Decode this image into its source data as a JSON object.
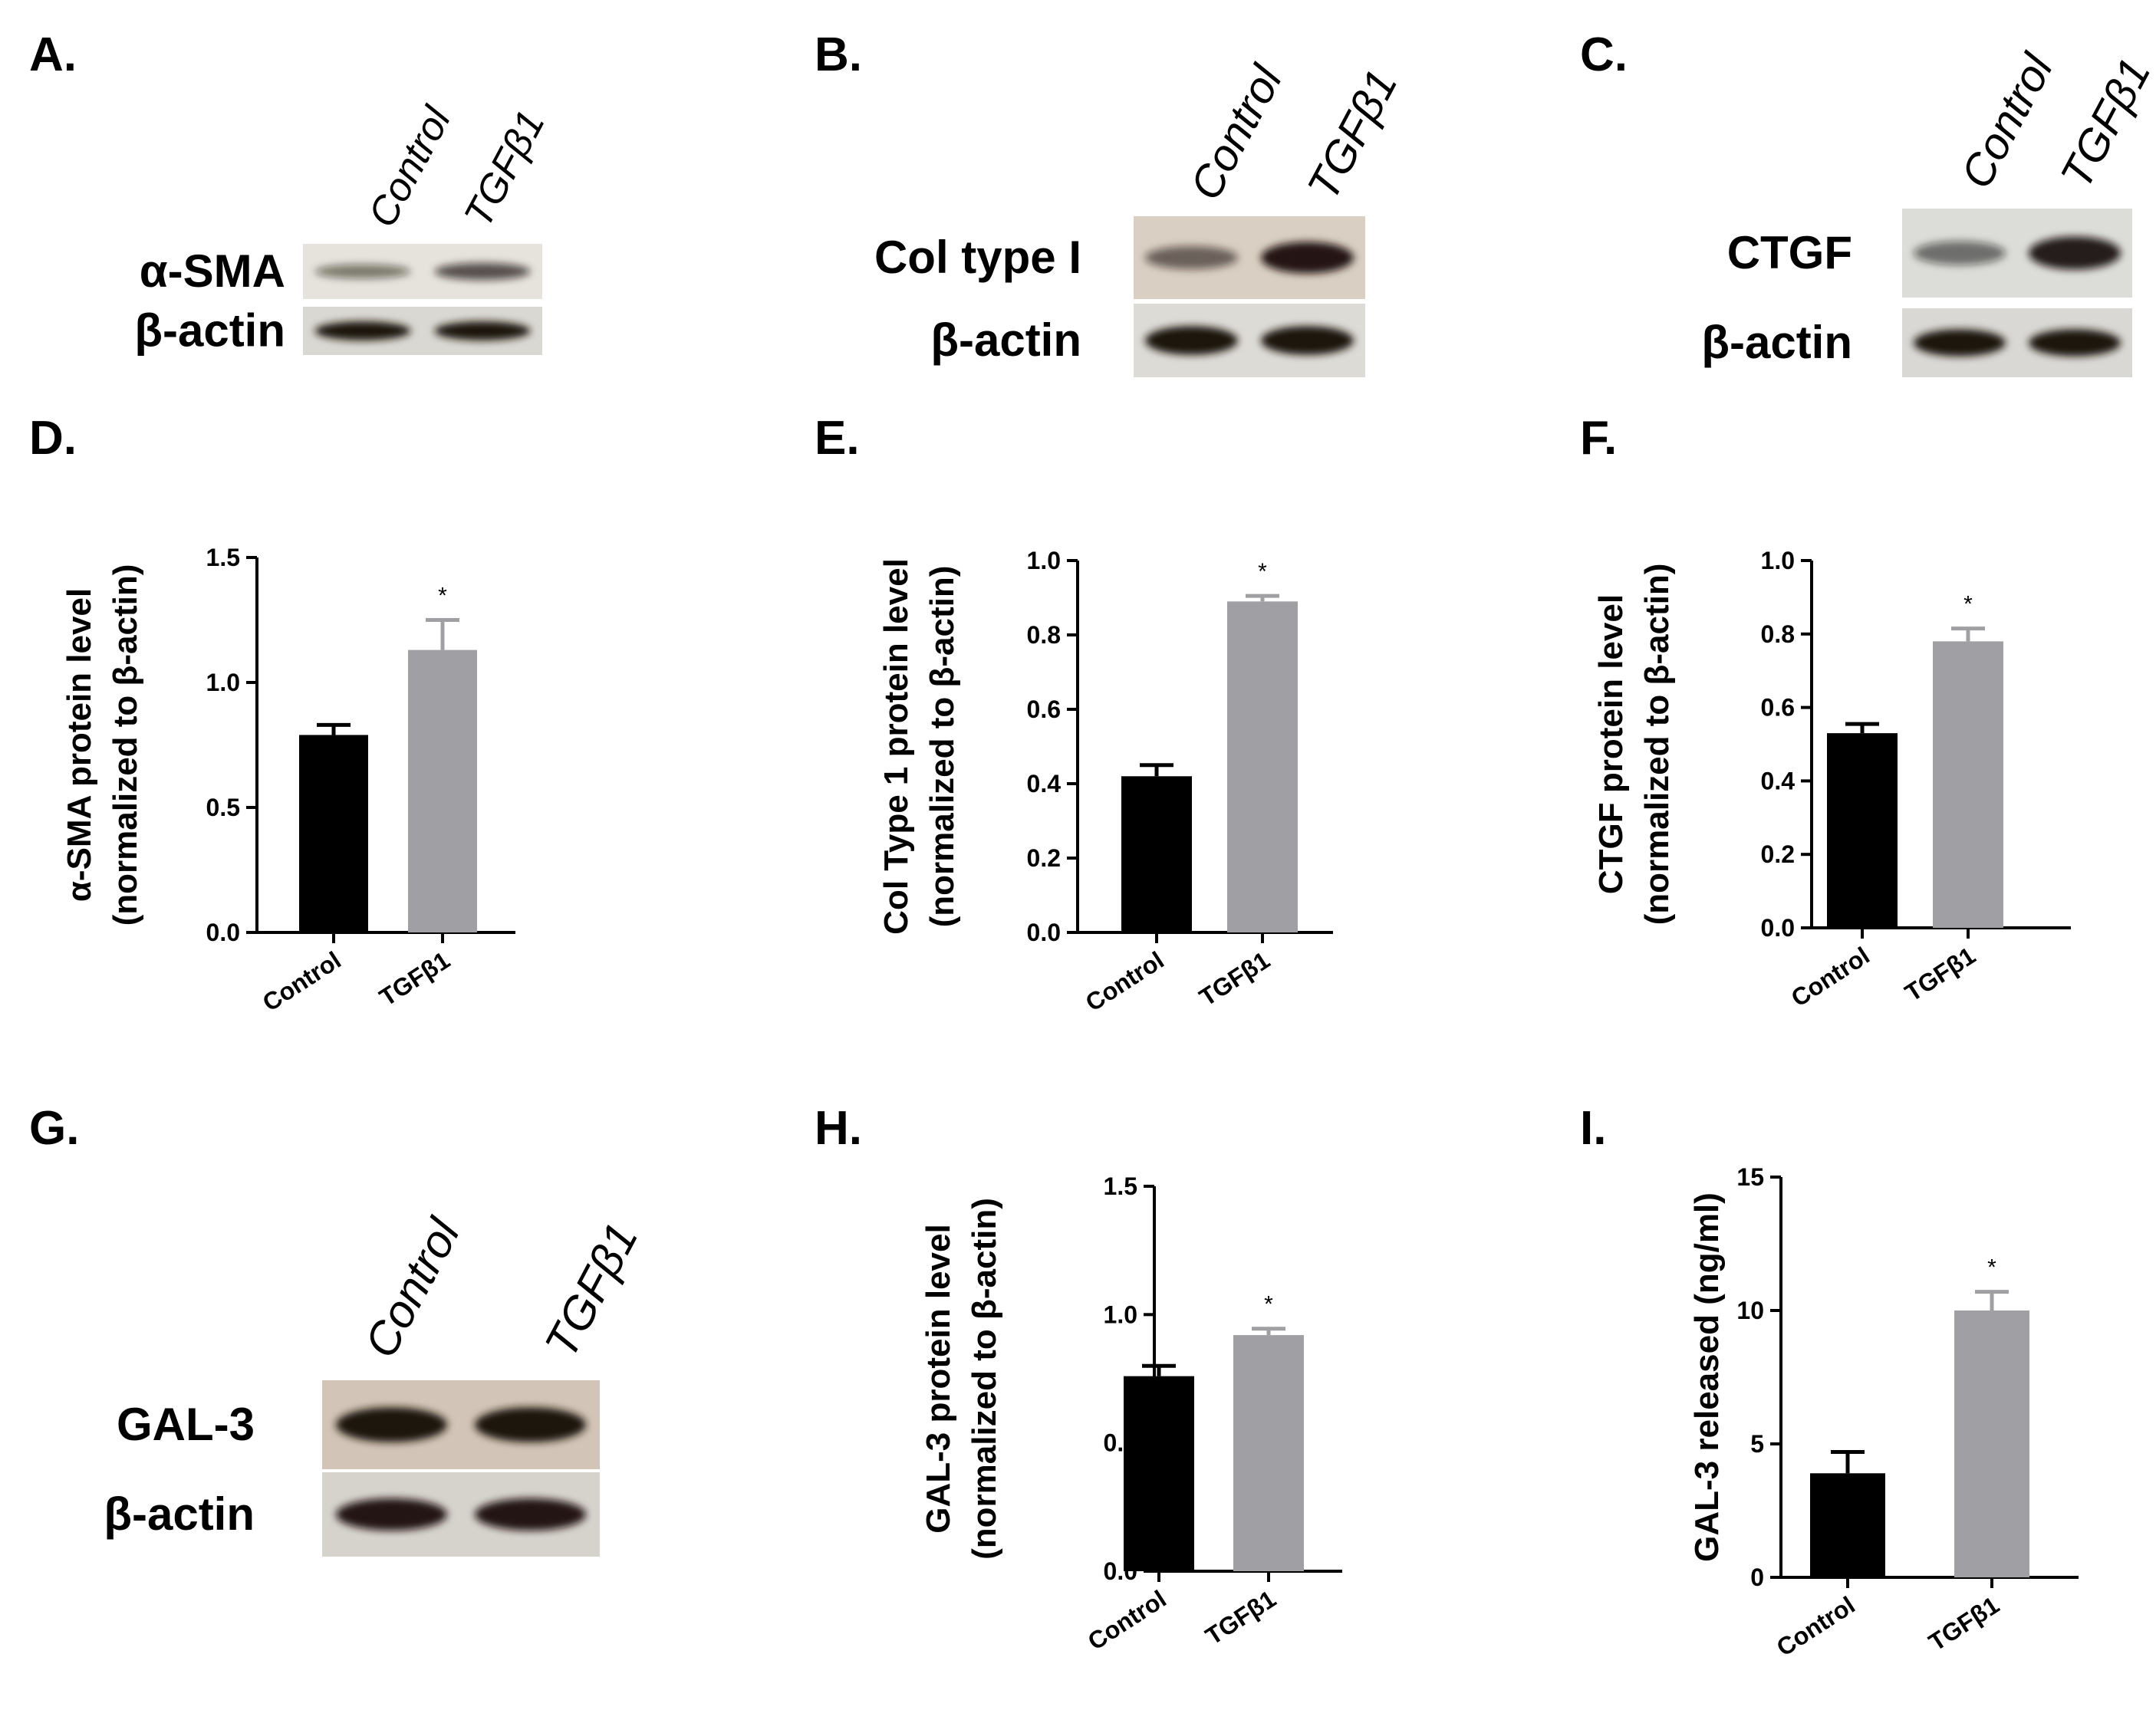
{
  "panels": [
    {
      "id": "A",
      "label": "A.",
      "kind": "blot",
      "lanes": [
        "Control",
        "TGFβ1"
      ],
      "rows": [
        {
          "name": "α-SMA",
          "bands": [
            0.35,
            0.6
          ],
          "bg": "#e6e3dc"
        },
        {
          "name": "β-actin",
          "bands": [
            1.0,
            1.0
          ],
          "bg": "#dad8d2"
        }
      ]
    },
    {
      "id": "B",
      "label": "B.",
      "kind": "blot",
      "lanes": [
        "Control",
        "TGFβ1"
      ],
      "rows": [
        {
          "name": "Col type I",
          "bands": [
            0.45,
            0.95
          ],
          "bg": "#d9cfc2"
        },
        {
          "name": "β-actin",
          "bands": [
            1.0,
            1.0
          ],
          "bg": "#dddbd6"
        }
      ]
    },
    {
      "id": "C",
      "label": "C.",
      "kind": "blot",
      "lanes": [
        "Control",
        "TGFβ1"
      ],
      "rows": [
        {
          "name": "CTGF",
          "bands": [
            0.4,
            0.9
          ],
          "bg": "#dcdcd8"
        },
        {
          "name": "β-actin",
          "bands": [
            1.0,
            1.0
          ],
          "bg": "#d9d8d4"
        }
      ]
    },
    {
      "id": "G",
      "label": "G.",
      "kind": "blot",
      "lanes": [
        "Control",
        "TGFβ1"
      ],
      "rows": [
        {
          "name": "GAL-3",
          "bands": [
            1.0,
            1.0
          ],
          "bg": "#d2c4b6"
        },
        {
          "name": "β-actin",
          "bands": [
            0.95,
            0.95
          ],
          "bg": "#d6d3cd"
        }
      ]
    }
  ],
  "chart_data": [
    {
      "id": "D",
      "label": "D.",
      "type": "bar",
      "categories": [
        "Control",
        "TGFβ1"
      ],
      "values": [
        0.79,
        1.13
      ],
      "errors": [
        0.04,
        0.12
      ],
      "ylabel": [
        "α-SMA protein level",
        "(normalized to β-actin)"
      ],
      "ylim": [
        0,
        1.5
      ],
      "yticks": [
        "0.0",
        "0.5",
        "1.0",
        "1.5"
      ],
      "significance": [
        "",
        "*"
      ],
      "colors": [
        "#000000",
        "#a0a0a4"
      ]
    },
    {
      "id": "E",
      "label": "E.",
      "type": "bar",
      "categories": [
        "Control",
        "TGFβ1"
      ],
      "values": [
        0.42,
        0.89
      ],
      "errors": [
        0.03,
        0.015
      ],
      "ylabel": [
        "Col Type 1 protein level",
        "(normalized to β-actin)"
      ],
      "ylim": [
        0,
        1.0
      ],
      "yticks": [
        "0.0",
        "0.2",
        "0.4",
        "0.6",
        "0.8",
        "1.0"
      ],
      "significance": [
        "",
        "*"
      ],
      "colors": [
        "#000000",
        "#a0a0a4"
      ]
    },
    {
      "id": "F",
      "label": "F.",
      "type": "bar",
      "categories": [
        "Control",
        "TGFβ1"
      ],
      "values": [
        0.53,
        0.78
      ],
      "errors": [
        0.025,
        0.035
      ],
      "ylabel": [
        "CTGF protein level",
        "(normalized to β-actin)"
      ],
      "ylim": [
        0,
        1.0
      ],
      "yticks": [
        "0.0",
        "0.2",
        "0.4",
        "0.6",
        "0.8",
        "1.0"
      ],
      "significance": [
        "",
        "*"
      ],
      "colors": [
        "#000000",
        "#a0a0a4"
      ]
    },
    {
      "id": "H",
      "label": "H.",
      "type": "bar",
      "categories": [
        "Control",
        "TGFβ1"
      ],
      "values": [
        0.76,
        0.92
      ],
      "errors": [
        0.04,
        0.025
      ],
      "ylabel": [
        "GAL-3 protein level",
        "(normalized to β-actin)"
      ],
      "ylim": [
        0,
        1.5
      ],
      "yticks": [
        "0.0",
        "0.5",
        "1.0",
        "1.5"
      ],
      "significance": [
        "",
        "*"
      ],
      "colors": [
        "#000000",
        "#a0a0a4"
      ]
    },
    {
      "id": "I",
      "label": "I.",
      "type": "bar",
      "categories": [
        "Control",
        "TGFβ1"
      ],
      "values": [
        3.9,
        10.0
      ],
      "errors": [
        0.8,
        0.7
      ],
      "ylabel": [
        "GAL-3 released (ng/ml)"
      ],
      "ylim": [
        0,
        15
      ],
      "yticks": [
        "0",
        "5",
        "10",
        "15"
      ],
      "significance": [
        "",
        "*"
      ],
      "colors": [
        "#000000",
        "#a0a0a4"
      ]
    }
  ]
}
